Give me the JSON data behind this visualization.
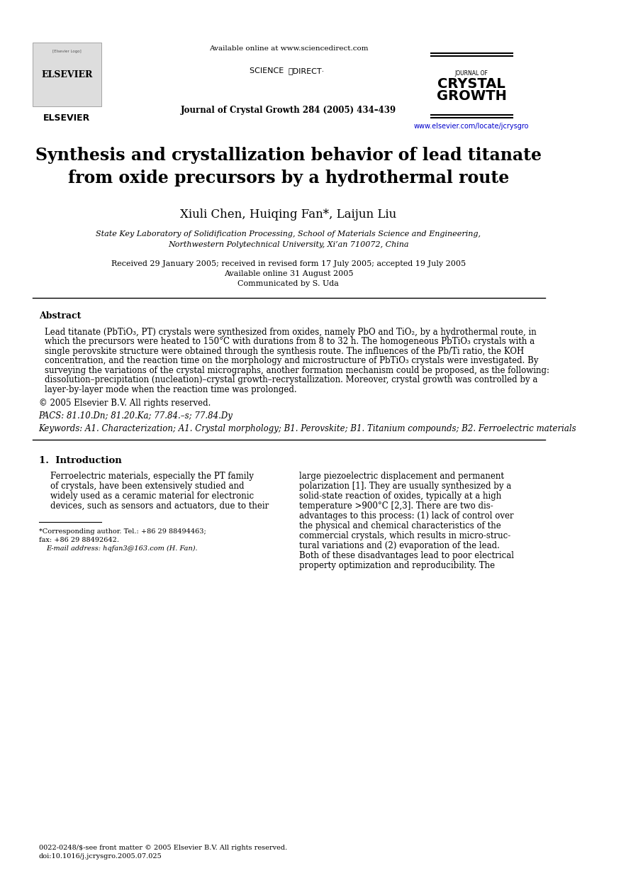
{
  "bg_color": "#ffffff",
  "header": {
    "available_online": "Available online at www.sciencedirect.com",
    "sciencedirect_label": "SCIENCE  DIRECT·",
    "journal_label_small": "JOURNAL OF",
    "journal_label_large": "CRYSTAL\nGROWTH",
    "journal_citation": "Journal of Crystal Growth 284 (2005) 434–439",
    "journal_url": "www.elsevier.com/locate/jcrysgro"
  },
  "title": "Synthesis and crystallization behavior of lead titanate\nfrom oxide precursors by a hydrothermal route",
  "authors": "Xiuli Chen, Huiqing Fan*, Laijun Liu",
  "affiliation1": "State Key Laboratory of Solidification Processing, School of Materials Science and Engineering,",
  "affiliation2": "Northwestern Polytechnical University, Xi’an 710072, China",
  "dates": "Received 29 January 2005; received in revised form 17 July 2005; accepted 19 July 2005",
  "available": "Available online 31 August 2005",
  "communicated": "Communicated by S. Uda",
  "abstract_title": "Abstract",
  "abstract_text": "Lead titanate (PbTiO₃, PT) crystals were synthesized from oxides, namely PbO and TiO₂, by a hydrothermal route, in which the precursors were heated to 150°C with durations from 8 to 32 h. The homogeneous PbTiO₃ crystals with a single perovskite structure were obtained through the synthesis route. The influences of the Pb/Ti ratio, the KOH concentration, and the reaction time on the morphology and microstructure of PbTiO₃ crystals were investigated. By surveying the variations of the crystal micrographs, another formation mechanism could be proposed, as the following: dissolution–precipitation (nucleation)–crystal growth–recrystallization. Moreover, crystal growth was controlled by a layer-by-layer mode when the reaction time was prolonged.",
  "copyright": "© 2005 Elsevier B.V. All rights reserved.",
  "pacs": "PACS: 81.10.Dn; 81.20.Ka; 77.84.–s; 77.84.Dy",
  "keywords": "Keywords: A1. Characterization; A1. Crystal morphology; B1. Perovskite; B1. Titanium compounds; B2. Ferroelectric materials",
  "section1_title": "1.  Introduction",
  "intro_left": "Ferroelectric materials, especially the PT family of crystals, have been extensively studied and widely used as a ceramic material for electronic devices, such as sensors and actuators, due to their",
  "intro_right": "large piezoelectric displacement and permanent polarization [1]. They are usually synthesized by a solid-state reaction of oxides, typically at a high temperature >900°C [2,3]. There are two disadvantages to this process: (1) lack of control over the physical and chemical characteristics of the commercial crystals, which results in micro-structural variations and (2) evaporation of the lead. Both of these disadvantages lead to poor electrical property optimization and reproducibility. The",
  "footnote_author": "*Corresponding author. Tel.: +86 29 88494463;",
  "footnote_fax": "fax: +86 29 88492642.",
  "footnote_email": "E-mail address: hqfan3@163.com (H. Fan).",
  "footer_license": "0022-0248/$-see front matter © 2005 Elsevier B.V. All rights reserved.",
  "footer_doi": "doi:10.1016/j.jcrysgro.2005.07.025"
}
